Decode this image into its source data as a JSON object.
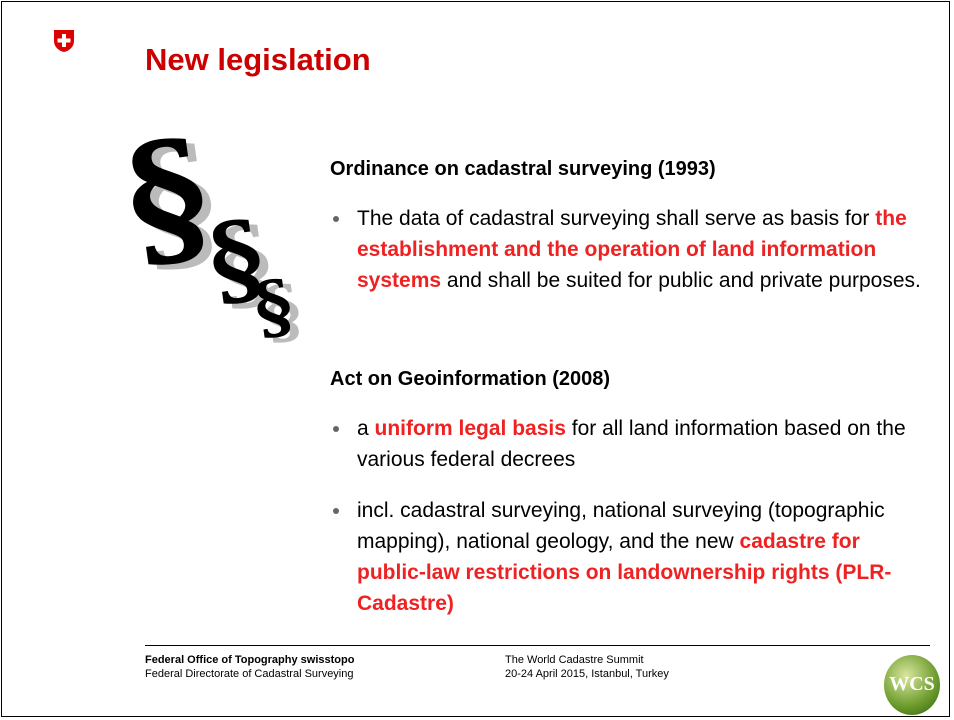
{
  "header": {
    "title": "New legislation"
  },
  "illustration": {
    "symbol": "§"
  },
  "sections": [
    {
      "heading": "Ordinance on cadastral surveying (1993)",
      "bullets": [
        {
          "segments": [
            {
              "text": "The data of cadastral surveying shall serve as basis for ",
              "emphasis": false
            },
            {
              "text": "the establishment and the operation of land information systems",
              "emphasis": true
            },
            {
              "text": " and shall be suited for public and private purposes.",
              "emphasis": false
            }
          ]
        }
      ]
    },
    {
      "heading": "Act on Geoinformation (2008)",
      "bullets": [
        {
          "segments": [
            {
              "text": "a ",
              "emphasis": false
            },
            {
              "text": "uniform legal basis",
              "emphasis": true
            },
            {
              "text": " for all land information based on the various federal decrees",
              "emphasis": false
            }
          ]
        },
        {
          "segments": [
            {
              "text": "incl. cadastral surveying, national surveying (topographic mapping), national geology, and the new ",
              "emphasis": false
            },
            {
              "text": "cadastre for public-law restrictions on landownership rights (PLR-Cadastre)",
              "emphasis": true
            }
          ]
        }
      ]
    }
  ],
  "footer": {
    "organization": "Federal Office of Topography swisstopo",
    "department": "Federal Directorate of Cadastral Surveying",
    "event": "The World Cadastre Summit",
    "event_details": "20-24 April 2015, Istanbul, Turkey",
    "logo": "WCS"
  }
}
